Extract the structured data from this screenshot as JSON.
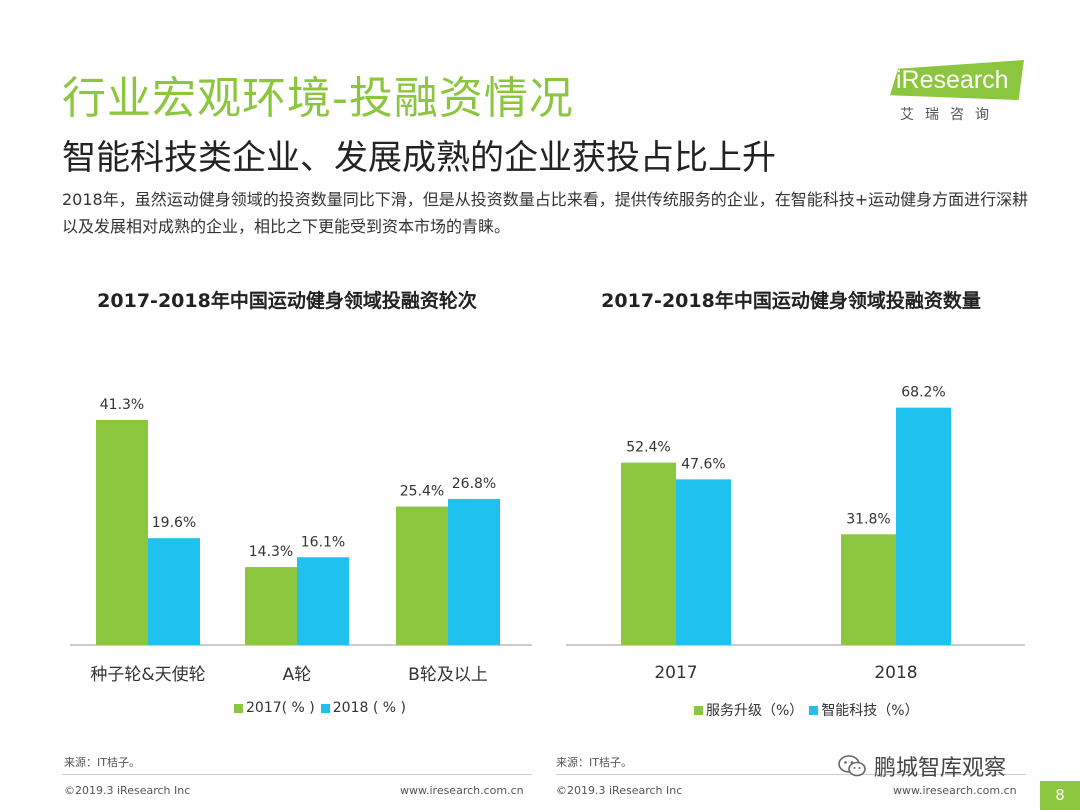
{
  "header": {
    "title": "行业宏观环境-投融资情况",
    "subtitle": "智能科技类企业、发展成熟的企业获投占比上升",
    "description": "2018年，虽然运动健身领域的投资数量同比下滑，但是从投资数量占比来看，提供传统服务的企业，在智能科技+运动健身方面进行深耕以及发展相对成熟的企业，相比之下更能受到资本市场的青睐。"
  },
  "logo": {
    "text": "iResearch",
    "subtext": "艾瑞咨询"
  },
  "colors": {
    "green": "#8cc63e",
    "blue": "#1fc1ee",
    "axis": "#999999"
  },
  "chart_data": [
    {
      "type": "bar",
      "title": "2017-2018年中国运动健身领域投融资轮次",
      "categories": [
        "种子轮&天使轮",
        "A轮",
        "B轮及以上"
      ],
      "series": [
        {
          "name": "2017( % )",
          "values": [
            41.3,
            14.3,
            25.4
          ],
          "labels": [
            "41.3%",
            "14.3%",
            "25.4%"
          ]
        },
        {
          "name": "2018 ( % )",
          "values": [
            19.6,
            16.1,
            26.8
          ],
          "labels": [
            "19.6%",
            "16.1%",
            "26.8%"
          ]
        }
      ],
      "unit": "%",
      "ylim": [
        0,
        50
      ],
      "legend_position": "bottom"
    },
    {
      "type": "bar",
      "title": "2017-2018年中国运动健身领域投融资数量",
      "categories": [
        "2017",
        "2018"
      ],
      "series": [
        {
          "name": "服务升级（%）",
          "values": [
            52.4,
            31.8
          ],
          "labels": [
            "52.4%",
            "31.8%"
          ]
        },
        {
          "name": "智能科技（%）",
          "values": [
            47.6,
            68.2
          ],
          "labels": [
            "47.6%",
            "68.2%"
          ]
        }
      ],
      "unit": "%",
      "ylim": [
        0,
        80
      ],
      "legend_position": "bottom"
    }
  ],
  "sources": [
    "来源：IT桔子。",
    "来源：IT桔子。"
  ],
  "footer": {
    "copyright": "©2019.3  iResearch Inc",
    "url": "www.iresearch.com.cn",
    "page": "8"
  },
  "watermark": {
    "text": "鹏城智库观察",
    "icon": "wechat-icon"
  }
}
